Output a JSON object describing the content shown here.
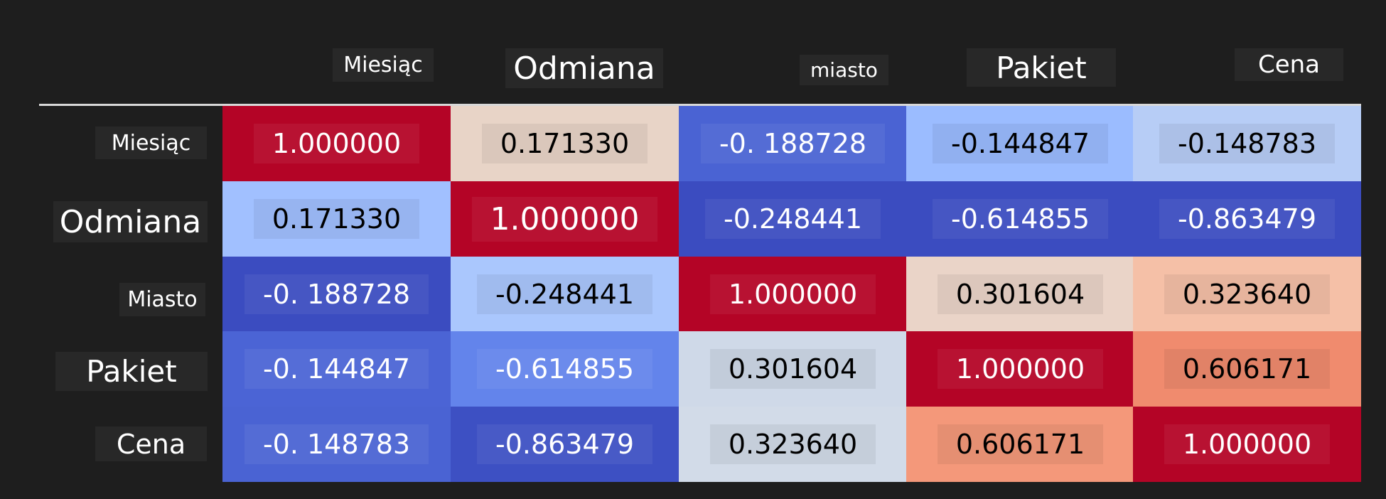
{
  "chart_data": {
    "type": "heatmap",
    "colormap": "coolwarm",
    "columns": [
      "Miesiąc",
      "Odmiana",
      "miasto",
      "Pakiet",
      "Cena"
    ],
    "rows": [
      "Miesiąc",
      "Odmiana",
      "Miasto",
      "Pakiet",
      "Cena"
    ],
    "values": [
      [
        "1.000000",
        "0.171330",
        "-0. 188728",
        "-0.144847",
        "-0.148783"
      ],
      [
        "0.171330",
        "1.000000",
        "-0.248441",
        "-0.614855",
        "-0.863479"
      ],
      [
        "-0. 188728",
        "-0.248441",
        "1.000000",
        "0.301604",
        "0.323640"
      ],
      [
        "-0. 144847",
        "-0.614855",
        "0.301604",
        "1.000000",
        "0.606171"
      ],
      [
        "-0. 148783",
        "-0.863479",
        "0.323640",
        "0.606171",
        "1.000000"
      ]
    ],
    "colors": [
      [
        "#b40426",
        "#e8d4c7",
        "#4a63d3",
        "#9bbcff",
        "#b7cdf6"
      ],
      [
        "#a1c0ff",
        "#b40426",
        "#3b4cc0",
        "#3b4cc0",
        "#3b4cc0"
      ],
      [
        "#3b4cc0",
        "#aac7fd",
        "#b40426",
        "#ead4c8",
        "#f5c0a7"
      ],
      [
        "#4b64d5",
        "#6384eb",
        "#cfd9e8",
        "#b40426",
        "#f08b6e"
      ],
      [
        "#4a63d3",
        "#3d50c3",
        "#d2dbe8",
        "#f4987a",
        "#b40426"
      ]
    ]
  }
}
